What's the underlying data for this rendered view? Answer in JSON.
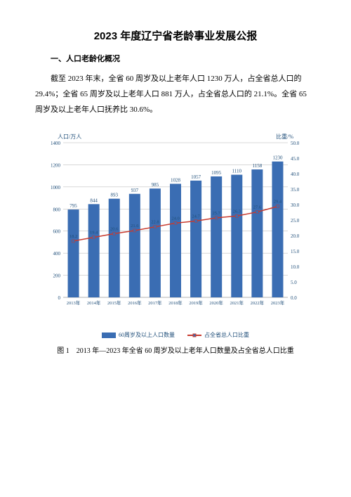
{
  "title": "2023 年度辽宁省老龄事业发展公报",
  "section1_heading": "一、人口老龄化概况",
  "paragraph1": "截至 2023 年末，全省 60 周岁及以上老年人口 1230 万人，占全省总人口的 29.4%；全省 65 周岁及以上老年人口 881 万人，占全省总人口的 21.1%。全省 65 周岁及以上老年人口抚养比 30.6%。",
  "caption": "图 1　2013 年—2023 年全省 60 周岁及以上老年人口数量及占全省总人口比重",
  "chart": {
    "type": "combo-bar-line",
    "y_left_label": "人口/万人",
    "y_right_label": "比重/%",
    "categories": [
      "2013年",
      "2014年",
      "2015年",
      "2016年",
      "2017年",
      "2018年",
      "2019年",
      "2020年",
      "2021年",
      "2022年",
      "2023年"
    ],
    "bar_values": [
      795,
      844,
      893,
      937,
      985,
      1028,
      1057,
      1095,
      1110,
      1158,
      1230
    ],
    "line_values": [
      18.2,
      19.4,
      20.6,
      21.6,
      22.8,
      24.0,
      24.7,
      25.7,
      26.3,
      27.6,
      29.4
    ],
    "bar_color": "#3a6db3",
    "line_color": "#c83a2e",
    "marker_fill": "#3a6db3",
    "grid_color": "#b0b0b0",
    "axis_text_color": "#1f4e79",
    "y_left_max": 1400,
    "y_left_step": 200,
    "y_right_max": 50,
    "y_right_step": 5,
    "legend_bar": "60周岁及以上人口数量",
    "legend_line": "占全省总人口比重",
    "font_size_axis": 7,
    "font_size_value": 7,
    "background": "#ffffff"
  }
}
